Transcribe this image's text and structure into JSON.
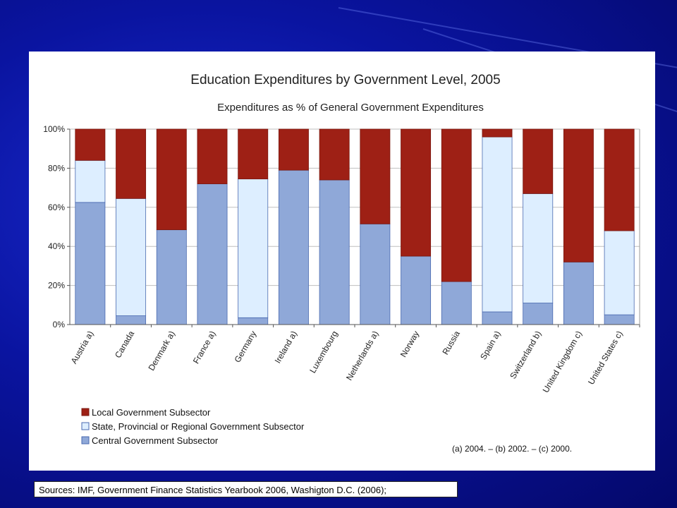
{
  "slide": {
    "sources_text": "Sources:  IMF, Government Finance Statistics Yearbook 2006, Washigton D.C. (2006);"
  },
  "chart_data": {
    "type": "bar",
    "stacked": true,
    "title": "Education Expenditures by Government Level, 2005",
    "subtitle": "Expenditures as % of General Government Expenditures",
    "xlabel": "",
    "ylabel": "",
    "ylim": [
      0,
      100
    ],
    "yticks": [
      "0%",
      "20%",
      "40%",
      "60%",
      "80%",
      "100%"
    ],
    "grid": true,
    "legend_position": "bottom-left",
    "categories": [
      "Austria a)",
      "Canada",
      "Denmark a)",
      "France a)",
      "Germany",
      "Ireland a)",
      "Luxembourg",
      "Netherlands a)",
      "Norway",
      "Russia",
      "Spain a)",
      "Switzerland b)",
      "United Kingdom c)",
      "United States c)"
    ],
    "series": [
      {
        "name": "Central Government Subsector",
        "color": "#8fa8d8",
        "values": [
          62.5,
          4.5,
          48.5,
          72,
          3.5,
          79,
          74,
          51.5,
          35,
          22,
          6.5,
          11,
          32,
          5
        ]
      },
      {
        "name": "State, Provincial or Regional Government Subsector",
        "color": "#ddeeff",
        "values": [
          21.5,
          60,
          0,
          0,
          71,
          0,
          0,
          0,
          0,
          0,
          89.5,
          56,
          0,
          43
        ]
      },
      {
        "name": "Local Government Subsector",
        "color": "#9e2015",
        "values": [
          16,
          35.5,
          51.5,
          28,
          25.5,
          21,
          26,
          48.5,
          65,
          78,
          4,
          33,
          68,
          52
        ]
      }
    ],
    "legend_order": [
      "Local Government Subsector",
      "State, Provincial or Regional Government Subsector",
      "Central Government Subsector"
    ],
    "footnote": "(a) 2004. – (b) 2002. –  (c) 2000."
  }
}
